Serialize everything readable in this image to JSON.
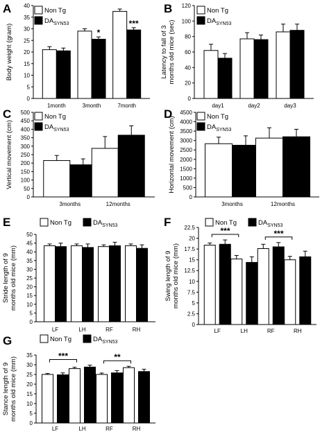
{
  "figure": {
    "panel_letters": [
      "A",
      "B",
      "C",
      "D",
      "E",
      "F",
      "G"
    ],
    "legend_nontg": "Non Tg",
    "legend_da_main": "DA",
    "legend_da_sub": "SYN53",
    "colors": {
      "nontg": "#ffffff",
      "da": "#000000",
      "edge": "#000000"
    }
  },
  "chart_data": [
    {
      "panel": "A",
      "type": "bar",
      "categories": [
        "1month",
        "3month",
        "7month"
      ],
      "series": [
        {
          "name": "Non Tg",
          "values": [
            21,
            29,
            37.5
          ],
          "errors": [
            1.3,
            1,
            1
          ]
        },
        {
          "name": "DA SYN53",
          "values": [
            20.5,
            25.5,
            29.5
          ],
          "errors": [
            1.2,
            1,
            1
          ]
        }
      ],
      "ylabel": "Body weight (gram)",
      "xlabel": "",
      "ylim": [
        0,
        40
      ],
      "yticks": [
        "0",
        "5",
        "10",
        "15",
        "20",
        "25",
        "30",
        "35",
        "40"
      ],
      "annotations": [
        {
          "text": "*",
          "category": 1
        },
        {
          "text": "***",
          "category": 2
        }
      ],
      "legend": "top-left",
      "grid": false
    },
    {
      "panel": "B",
      "type": "bar",
      "categories": [
        "day1",
        "day2",
        "day3"
      ],
      "series": [
        {
          "name": "Non Tg",
          "values": [
            62,
            77,
            86
          ],
          "errors": [
            8,
            8,
            10
          ]
        },
        {
          "name": "DA SYN53",
          "values": [
            52,
            76,
            88
          ],
          "errors": [
            6,
            6,
            8
          ]
        }
      ],
      "ylabel": "Latency to fall of 3 months old mice (sec)",
      "xlabel": "",
      "ylim": [
        0,
        120
      ],
      "yticks": [
        "0",
        "20",
        "40",
        "60",
        "80",
        "100",
        "120"
      ],
      "legend": "top-left",
      "grid": false
    },
    {
      "panel": "C",
      "type": "bar",
      "categories": [
        "3months",
        "12months"
      ],
      "series": [
        {
          "name": "Non Tg",
          "values": [
            215,
            287
          ],
          "errors": [
            30,
            70
          ]
        },
        {
          "name": "DA SYN53",
          "values": [
            190,
            365
          ],
          "errors": [
            35,
            55
          ]
        }
      ],
      "ylabel": "Vertical movement (cm)",
      "xlabel": "",
      "ylim": [
        0,
        500
      ],
      "yticks": [
        "0",
        "50",
        "100",
        "150",
        "200",
        "250",
        "300",
        "350",
        "400",
        "450",
        "500"
      ],
      "legend": "top-left",
      "grid": false
    },
    {
      "panel": "D",
      "type": "bar",
      "categories": [
        "3months",
        "12months"
      ],
      "series": [
        {
          "name": "Non Tg",
          "values": [
            2830,
            3130
          ],
          "errors": [
            350,
            550
          ]
        },
        {
          "name": "DA SYN53",
          "values": [
            2750,
            3200
          ],
          "errors": [
            500,
            400
          ]
        }
      ],
      "ylabel": "Horizontal movement (cm)",
      "xlabel": "",
      "ylim": [
        0,
        4500
      ],
      "yticks": [
        "0",
        "500",
        "1000",
        "1500",
        "2000",
        "2500",
        "3000",
        "3500",
        "4000",
        "4500"
      ],
      "legend": "top-left",
      "grid": false
    },
    {
      "panel": "E",
      "type": "bar",
      "categories": [
        "LF",
        "LH",
        "RF",
        "RH"
      ],
      "series": [
        {
          "name": "Non Tg",
          "values": [
            43.5,
            43.5,
            43,
            43.5
          ],
          "errors": [
            1,
            1,
            1,
            1
          ]
        },
        {
          "name": "DA SYN53",
          "values": [
            43,
            42.5,
            43.5,
            42
          ],
          "errors": [
            2,
            2,
            2,
            2
          ]
        }
      ],
      "ylabel": "Stride length of 9 months old mice (mm)",
      "xlabel": "",
      "ylim": [
        0,
        50
      ],
      "yticks": [
        "0",
        "5",
        "10",
        "15",
        "20",
        "25",
        "30",
        "35",
        "40",
        "45",
        "50"
      ],
      "legend": "top",
      "grid": false
    },
    {
      "panel": "F",
      "type": "bar",
      "categories": [
        "LF",
        "LH",
        "RF",
        "RH"
      ],
      "series": [
        {
          "name": "Non Tg",
          "values": [
            18.4,
            15.2,
            17.6,
            15
          ],
          "errors": [
            0.5,
            0.8,
            1,
            0.8
          ]
        },
        {
          "name": "DA SYN53",
          "values": [
            18.6,
            14.4,
            18,
            15.7
          ],
          "errors": [
            1,
            1.3,
            1,
            1.3
          ]
        }
      ],
      "ylabel": "Swing length of 9 months old mice (mm)",
      "xlabel": "",
      "ylim": [
        0,
        22.5
      ],
      "yticks": [
        "0",
        "2.5",
        "5",
        "7.5",
        "10",
        "12.5",
        "15",
        "17.5",
        "20",
        "22.5"
      ],
      "brackets": [
        {
          "from": 0,
          "to": 1,
          "text": "***"
        },
        {
          "from": 2,
          "to": 3,
          "text": "***"
        }
      ],
      "legend": "top",
      "grid": false
    },
    {
      "panel": "G",
      "type": "bar",
      "categories": [
        "LF",
        "LH",
        "RF",
        "RH"
      ],
      "series": [
        {
          "name": "Non Tg",
          "values": [
            25,
            28,
            25,
            28.5
          ],
          "errors": [
            0.5,
            0.7,
            0.7,
            0.7
          ]
        },
        {
          "name": "DA SYN53",
          "values": [
            24.8,
            28.8,
            25.8,
            26.5
          ],
          "errors": [
            1,
            1,
            1.2,
            1.2
          ]
        }
      ],
      "ylabel": "Stance length of 9 months old mice (mm)",
      "xlabel": "",
      "ylim": [
        0,
        35
      ],
      "yticks": [
        "0",
        "5",
        "10",
        "15",
        "20",
        "25",
        "30",
        "35"
      ],
      "brackets": [
        {
          "from": 0,
          "to": 1,
          "text": "***"
        },
        {
          "from": 2,
          "to": 3,
          "text": "**"
        }
      ],
      "legend": "top",
      "grid": false
    }
  ]
}
